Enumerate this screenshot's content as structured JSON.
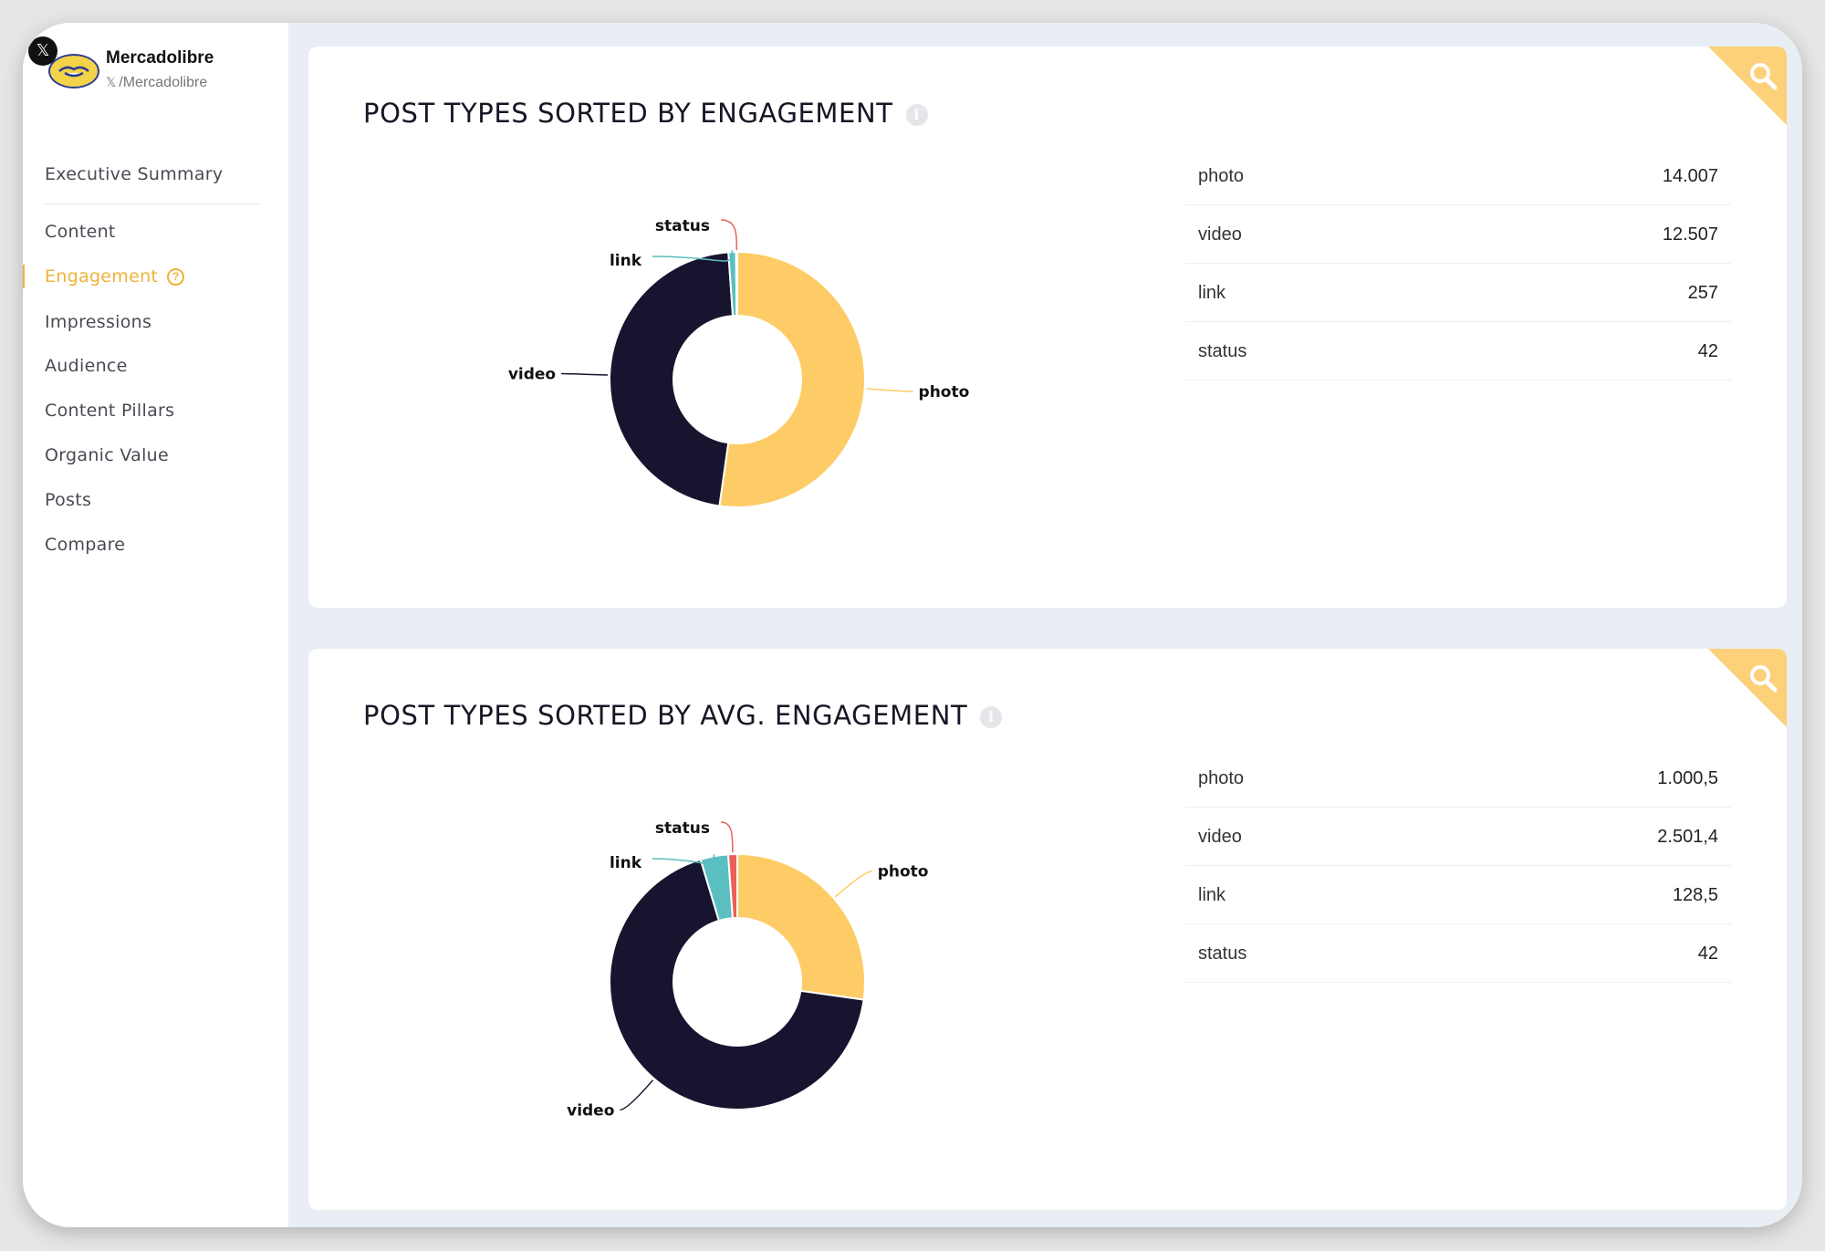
{
  "profile": {
    "platform_icon": "x-icon",
    "name": "Mercadolibre",
    "handle_icon": "x-icon",
    "handle": "/Mercadolibre"
  },
  "nav": {
    "items": [
      {
        "label": "Executive Summary",
        "active": false
      },
      {
        "label": "Content",
        "active": false
      },
      {
        "label": "Engagement",
        "active": true
      },
      {
        "label": "Impressions",
        "active": false
      },
      {
        "label": "Audience",
        "active": false
      },
      {
        "label": "Content Pillars",
        "active": false
      },
      {
        "label": "Organic Value",
        "active": false
      },
      {
        "label": "Posts",
        "active": false
      },
      {
        "label": "Compare",
        "active": false
      }
    ],
    "help_icon": "?"
  },
  "colors": {
    "photo": "#fdcc66",
    "video": "#16142e",
    "link": "#5bbfc2",
    "status": "#e9605a",
    "accent": "#f0b23a"
  },
  "cards": [
    {
      "title": "POST TYPES SORTED BY ENGAGEMENT",
      "info_icon": "i",
      "rows": [
        {
          "name": "photo",
          "value": "14.007"
        },
        {
          "name": "video",
          "value": "12.507"
        },
        {
          "name": "link",
          "value": "257"
        },
        {
          "name": "status",
          "value": "42"
        }
      ]
    },
    {
      "title": "POST TYPES SORTED BY AVG. ENGAGEMENT",
      "info_icon": "i",
      "rows": [
        {
          "name": "photo",
          "value": "1.000,5"
        },
        {
          "name": "video",
          "value": "2.501,4"
        },
        {
          "name": "link",
          "value": "128,5"
        },
        {
          "name": "status",
          "value": "42"
        }
      ]
    }
  ],
  "chart_data": [
    {
      "type": "pie",
      "title": "POST TYPES SORTED BY ENGAGEMENT",
      "categories": [
        "photo",
        "video",
        "link",
        "status"
      ],
      "values": [
        14007,
        12507,
        257,
        42
      ],
      "donut": true
    },
    {
      "type": "pie",
      "title": "POST TYPES SORTED BY AVG. ENGAGEMENT",
      "categories": [
        "photo",
        "video",
        "link",
        "status"
      ],
      "values": [
        1000.5,
        2501.4,
        128.5,
        42
      ],
      "donut": true
    }
  ]
}
